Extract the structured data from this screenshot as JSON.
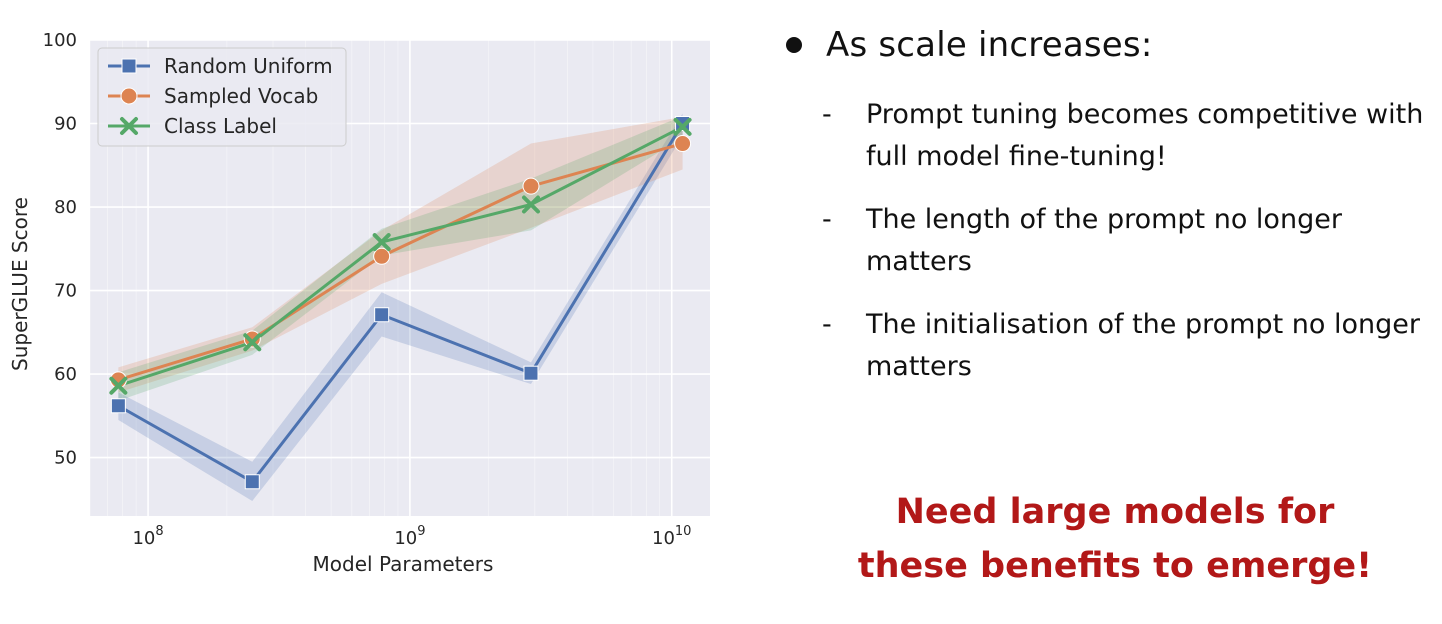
{
  "chart_data": {
    "type": "line",
    "xlabel": "Model Parameters",
    "ylabel": "SuperGLUE Score",
    "xscale": "log",
    "xlim": [
      60000000,
      14000000000
    ],
    "ylim": [
      43,
      100
    ],
    "xticks": [
      {
        "value": 100000000,
        "base": "10",
        "exp": "8"
      },
      {
        "value": 1000000000,
        "base": "10",
        "exp": "9"
      },
      {
        "value": 10000000000,
        "base": "10",
        "exp": "10"
      }
    ],
    "yticks": [
      50,
      60,
      70,
      80,
      90,
      100
    ],
    "grid": true,
    "legend_position": "upper-left",
    "x": [
      77000000,
      250000000,
      780000000,
      2900000000,
      11000000000
    ],
    "series": [
      {
        "name": "Random Uniform",
        "color": "#4c72b0",
        "marker": "square",
        "values": [
          56.2,
          47.1,
          67.1,
          60.1,
          90.0
        ],
        "lower": [
          54.5,
          44.8,
          64.5,
          58.8,
          88.5
        ],
        "upper": [
          57.8,
          49.5,
          69.8,
          61.4,
          91.2
        ]
      },
      {
        "name": "Sampled Vocab",
        "color": "#dd8452",
        "marker": "circle",
        "values": [
          59.3,
          64.2,
          74.1,
          82.5,
          87.6
        ],
        "lower": [
          57.8,
          62.8,
          70.8,
          77.5,
          84.5
        ],
        "upper": [
          60.8,
          65.6,
          77.2,
          87.6,
          90.8
        ]
      },
      {
        "name": "Class Label",
        "color": "#55a868",
        "marker": "x",
        "values": [
          58.6,
          63.8,
          75.8,
          80.3,
          89.6
        ],
        "lower": [
          56.8,
          62.3,
          74.2,
          77.2,
          88.3
        ],
        "upper": [
          60.2,
          65.2,
          77.4,
          83.4,
          90.9
        ]
      }
    ]
  },
  "slide": {
    "heading": "As scale increases:",
    "points": [
      "Prompt tuning becomes competitive with full model fine-tuning!",
      "The length of the prompt no longer matters",
      "The initialisation of the prompt no longer matters"
    ],
    "dash": "-",
    "conclusion_line1": "Need large models for",
    "conclusion_line2": "these benefits to emerge!"
  }
}
